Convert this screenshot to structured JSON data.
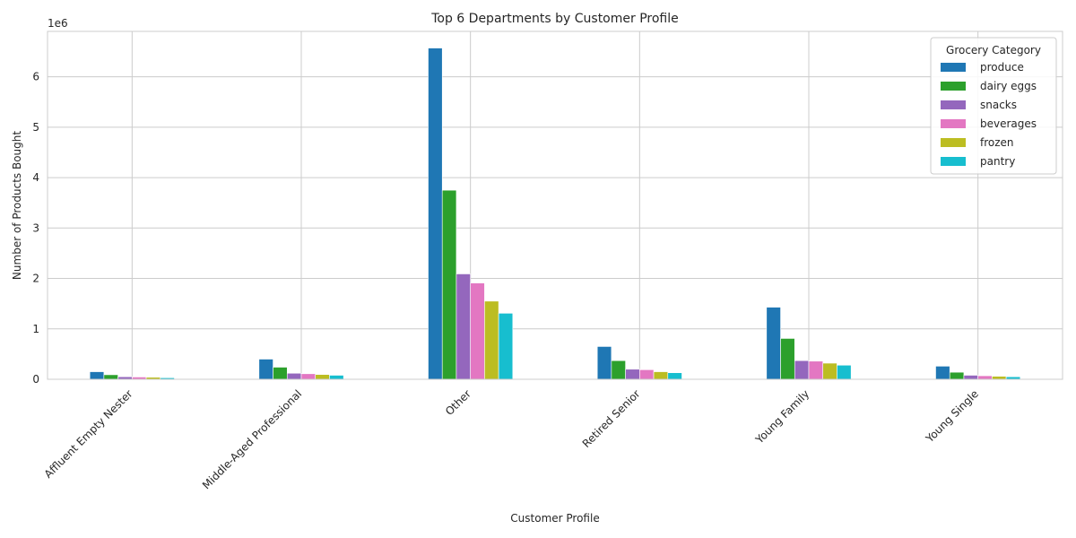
{
  "chart_data": {
    "type": "bar",
    "title": "Top 6 Departments by Customer Profile",
    "xlabel": "Customer Profile",
    "ylabel": "Number of Products Bought",
    "y_offset_label": "1e6",
    "y_scale": 1000000,
    "ylim": [
      0,
      6900000
    ],
    "yticks": [
      0,
      1000000,
      2000000,
      3000000,
      4000000,
      5000000,
      6000000
    ],
    "ytick_labels": [
      "0",
      "1",
      "2",
      "3",
      "4",
      "5",
      "6"
    ],
    "grid": true,
    "legend_title": "Grocery Category",
    "legend_position": "top-right",
    "categories": [
      "Affluent Empty Nester",
      "Middle-Aged Professional",
      "Other",
      "Retired Senior",
      "Young Family",
      "Young Single"
    ],
    "series": [
      {
        "name": "produce",
        "color": "#1f77b4",
        "values": [
          150000,
          400000,
          6570000,
          650000,
          1430000,
          260000
        ]
      },
      {
        "name": "dairy eggs",
        "color": "#2ca02c",
        "values": [
          90000,
          240000,
          3750000,
          370000,
          810000,
          140000
        ]
      },
      {
        "name": "snacks",
        "color": "#9467bd",
        "values": [
          50000,
          120000,
          2090000,
          200000,
          370000,
          80000
        ]
      },
      {
        "name": "beverages",
        "color": "#e377c2",
        "values": [
          45000,
          110000,
          1910000,
          190000,
          360000,
          70000
        ]
      },
      {
        "name": "frozen",
        "color": "#bcbd22",
        "values": [
          40000,
          95000,
          1550000,
          150000,
          320000,
          60000
        ]
      },
      {
        "name": "pantry",
        "color": "#17becf",
        "values": [
          30000,
          80000,
          1310000,
          130000,
          280000,
          50000
        ]
      }
    ]
  }
}
